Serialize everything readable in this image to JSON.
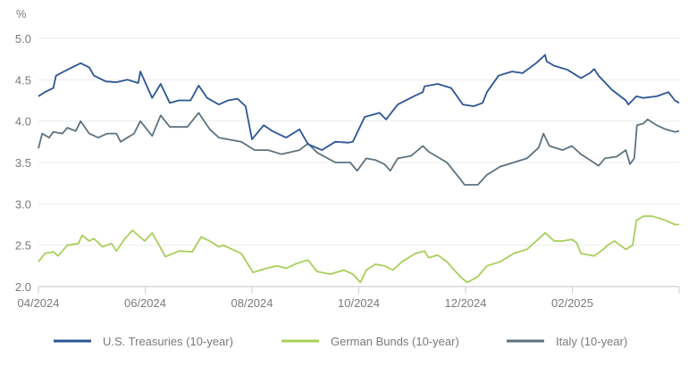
{
  "chart_data": {
    "type": "line",
    "title": "",
    "ylabel": "%",
    "xlabel": "",
    "ylim": [
      2.0,
      5.0
    ],
    "yticks": [
      "5.0",
      "4.5",
      "4.0",
      "3.5",
      "3.0",
      "2.5",
      "2.0"
    ],
    "ytick_values": [
      5.0,
      4.5,
      4.0,
      3.5,
      3.0,
      2.5,
      2.0
    ],
    "xlim_months": [
      0,
      12
    ],
    "x_unit": "months since 04/2024",
    "xticks": [
      {
        "label": "04/2024",
        "month": 0
      },
      {
        "label": "06/2024",
        "month": 2
      },
      {
        "label": "08/2024",
        "month": 4
      },
      {
        "label": "10/2024",
        "month": 6
      },
      {
        "label": "12/2024",
        "month": 8
      },
      {
        "label": "02/2025",
        "month": 10
      },
      {
        "label": "",
        "month": 12
      }
    ],
    "grid": true,
    "legend_position": "bottom",
    "series": [
      {
        "name": "U.S. Treasuries (10-year)",
        "color": "#2b5597",
        "points": [
          [
            0,
            4.3
          ],
          [
            0.12,
            4.35
          ],
          [
            0.28,
            4.4
          ],
          [
            0.33,
            4.55
          ],
          [
            0.54,
            4.62
          ],
          [
            0.79,
            4.7
          ],
          [
            0.95,
            4.65
          ],
          [
            1.04,
            4.55
          ],
          [
            1.26,
            4.48
          ],
          [
            1.46,
            4.47
          ],
          [
            1.67,
            4.5
          ],
          [
            1.87,
            4.46
          ],
          [
            1.91,
            4.6
          ],
          [
            2.13,
            4.28
          ],
          [
            2.29,
            4.45
          ],
          [
            2.46,
            4.22
          ],
          [
            2.63,
            4.25
          ],
          [
            2.85,
            4.25
          ],
          [
            3.0,
            4.43
          ],
          [
            3.16,
            4.28
          ],
          [
            3.38,
            4.2
          ],
          [
            3.55,
            4.25
          ],
          [
            3.73,
            4.27
          ],
          [
            3.88,
            4.18
          ],
          [
            4.0,
            3.78
          ],
          [
            4.22,
            3.95
          ],
          [
            4.38,
            3.88
          ],
          [
            4.64,
            3.8
          ],
          [
            4.89,
            3.9
          ],
          [
            5.05,
            3.72
          ],
          [
            5.31,
            3.65
          ],
          [
            5.56,
            3.75
          ],
          [
            5.81,
            3.74
          ],
          [
            5.89,
            3.75
          ],
          [
            6.11,
            4.05
          ],
          [
            6.39,
            4.1
          ],
          [
            6.51,
            4.02
          ],
          [
            6.73,
            4.2
          ],
          [
            7.03,
            4.3
          ],
          [
            7.2,
            4.35
          ],
          [
            7.23,
            4.42
          ],
          [
            7.48,
            4.45
          ],
          [
            7.73,
            4.4
          ],
          [
            7.95,
            4.2
          ],
          [
            8.15,
            4.18
          ],
          [
            8.32,
            4.22
          ],
          [
            8.4,
            4.35
          ],
          [
            8.62,
            4.55
          ],
          [
            8.87,
            4.6
          ],
          [
            9.07,
            4.58
          ],
          [
            9.32,
            4.7
          ],
          [
            9.49,
            4.8
          ],
          [
            9.52,
            4.72
          ],
          [
            9.66,
            4.67
          ],
          [
            9.91,
            4.62
          ],
          [
            10.16,
            4.52
          ],
          [
            10.33,
            4.58
          ],
          [
            10.41,
            4.63
          ],
          [
            10.49,
            4.55
          ],
          [
            10.74,
            4.38
          ],
          [
            11.0,
            4.25
          ],
          [
            11.05,
            4.2
          ],
          [
            11.2,
            4.3
          ],
          [
            11.33,
            4.28
          ],
          [
            11.58,
            4.3
          ],
          [
            11.8,
            4.35
          ],
          [
            11.92,
            4.25
          ],
          [
            12.0,
            4.22
          ]
        ]
      },
      {
        "name": "German Bunds (10-year)",
        "color": "#a8cf5a",
        "points": [
          [
            0,
            2.3
          ],
          [
            0.12,
            2.4
          ],
          [
            0.28,
            2.42
          ],
          [
            0.37,
            2.37
          ],
          [
            0.54,
            2.5
          ],
          [
            0.75,
            2.52
          ],
          [
            0.82,
            2.62
          ],
          [
            0.95,
            2.55
          ],
          [
            1.04,
            2.58
          ],
          [
            1.2,
            2.48
          ],
          [
            1.37,
            2.52
          ],
          [
            1.46,
            2.43
          ],
          [
            1.62,
            2.58
          ],
          [
            1.76,
            2.68
          ],
          [
            1.99,
            2.55
          ],
          [
            2.13,
            2.65
          ],
          [
            2.38,
            2.36
          ],
          [
            2.63,
            2.43
          ],
          [
            2.88,
            2.42
          ],
          [
            3.05,
            2.6
          ],
          [
            3.21,
            2.55
          ],
          [
            3.38,
            2.48
          ],
          [
            3.46,
            2.5
          ],
          [
            3.8,
            2.4
          ],
          [
            4.02,
            2.17
          ],
          [
            4.27,
            2.22
          ],
          [
            4.47,
            2.25
          ],
          [
            4.64,
            2.22
          ],
          [
            4.84,
            2.28
          ],
          [
            5.05,
            2.32
          ],
          [
            5.22,
            2.18
          ],
          [
            5.47,
            2.15
          ],
          [
            5.72,
            2.2
          ],
          [
            5.89,
            2.15
          ],
          [
            6.03,
            2.05
          ],
          [
            6.14,
            2.2
          ],
          [
            6.31,
            2.27
          ],
          [
            6.48,
            2.25
          ],
          [
            6.64,
            2.2
          ],
          [
            6.81,
            2.3
          ],
          [
            7.06,
            2.4
          ],
          [
            7.23,
            2.43
          ],
          [
            7.31,
            2.35
          ],
          [
            7.48,
            2.38
          ],
          [
            7.65,
            2.3
          ],
          [
            7.9,
            2.12
          ],
          [
            8.03,
            2.05
          ],
          [
            8.23,
            2.12
          ],
          [
            8.4,
            2.25
          ],
          [
            8.65,
            2.3
          ],
          [
            8.9,
            2.4
          ],
          [
            9.15,
            2.45
          ],
          [
            9.41,
            2.6
          ],
          [
            9.49,
            2.65
          ],
          [
            9.66,
            2.55
          ],
          [
            9.82,
            2.55
          ],
          [
            9.99,
            2.57
          ],
          [
            10.08,
            2.53
          ],
          [
            10.16,
            2.4
          ],
          [
            10.41,
            2.37
          ],
          [
            10.58,
            2.45
          ],
          [
            10.66,
            2.5
          ],
          [
            10.79,
            2.55
          ],
          [
            11.0,
            2.45
          ],
          [
            11.13,
            2.5
          ],
          [
            11.2,
            2.8
          ],
          [
            11.33,
            2.85
          ],
          [
            11.5,
            2.85
          ],
          [
            11.75,
            2.8
          ],
          [
            11.92,
            2.75
          ],
          [
            12.0,
            2.75
          ]
        ]
      },
      {
        "name": "Italy (10-year)",
        "color": "#5d7280",
        "points": [
          [
            0,
            3.67
          ],
          [
            0.07,
            3.85
          ],
          [
            0.2,
            3.8
          ],
          [
            0.28,
            3.87
          ],
          [
            0.45,
            3.85
          ],
          [
            0.54,
            3.92
          ],
          [
            0.7,
            3.88
          ],
          [
            0.79,
            4.0
          ],
          [
            0.95,
            3.85
          ],
          [
            1.12,
            3.8
          ],
          [
            1.29,
            3.85
          ],
          [
            1.46,
            3.85
          ],
          [
            1.54,
            3.75
          ],
          [
            1.79,
            3.85
          ],
          [
            1.91,
            4.0
          ],
          [
            2.13,
            3.82
          ],
          [
            2.29,
            4.07
          ],
          [
            2.46,
            3.93
          ],
          [
            2.79,
            3.93
          ],
          [
            3.0,
            4.1
          ],
          [
            3.21,
            3.9
          ],
          [
            3.38,
            3.8
          ],
          [
            3.63,
            3.77
          ],
          [
            3.8,
            3.75
          ],
          [
            4.05,
            3.65
          ],
          [
            4.3,
            3.65
          ],
          [
            4.55,
            3.6
          ],
          [
            4.89,
            3.65
          ],
          [
            5.05,
            3.73
          ],
          [
            5.22,
            3.62
          ],
          [
            5.56,
            3.5
          ],
          [
            5.84,
            3.5
          ],
          [
            5.97,
            3.4
          ],
          [
            6.14,
            3.55
          ],
          [
            6.31,
            3.53
          ],
          [
            6.48,
            3.48
          ],
          [
            6.59,
            3.4
          ],
          [
            6.73,
            3.55
          ],
          [
            6.98,
            3.58
          ],
          [
            7.2,
            3.7
          ],
          [
            7.31,
            3.63
          ],
          [
            7.65,
            3.5
          ],
          [
            7.9,
            3.3
          ],
          [
            7.98,
            3.23
          ],
          [
            8.23,
            3.23
          ],
          [
            8.4,
            3.35
          ],
          [
            8.65,
            3.45
          ],
          [
            8.9,
            3.5
          ],
          [
            9.15,
            3.55
          ],
          [
            9.37,
            3.68
          ],
          [
            9.46,
            3.85
          ],
          [
            9.57,
            3.7
          ],
          [
            9.82,
            3.65
          ],
          [
            9.99,
            3.7
          ],
          [
            10.16,
            3.6
          ],
          [
            10.33,
            3.53
          ],
          [
            10.49,
            3.46
          ],
          [
            10.61,
            3.55
          ],
          [
            10.83,
            3.57
          ],
          [
            11.0,
            3.65
          ],
          [
            11.08,
            3.48
          ],
          [
            11.16,
            3.55
          ],
          [
            11.21,
            3.95
          ],
          [
            11.33,
            3.97
          ],
          [
            11.41,
            4.02
          ],
          [
            11.58,
            3.95
          ],
          [
            11.75,
            3.9
          ],
          [
            11.92,
            3.87
          ],
          [
            12.0,
            3.88
          ]
        ]
      }
    ]
  }
}
